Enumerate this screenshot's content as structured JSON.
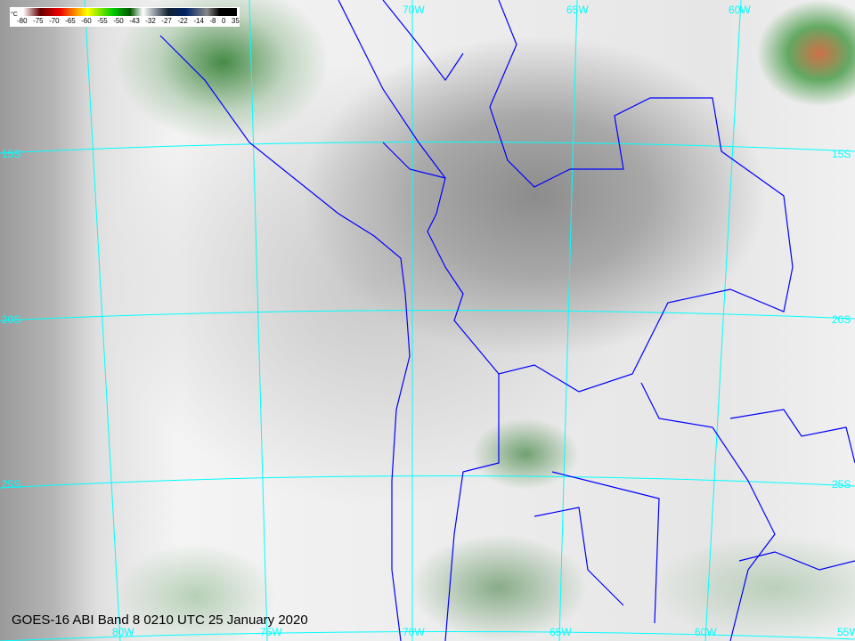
{
  "caption": "GOES-16 ABI Band 8 0210 UTC 25 January 2020",
  "colorbar": {
    "unit": "°C",
    "ticks": [
      "-80",
      "-75",
      "-70",
      "-65",
      "-60",
      "-55",
      "-50",
      "-43",
      "-32",
      "-27",
      "-22",
      "-14",
      "-8",
      "0",
      "35"
    ]
  },
  "grid_labels": {
    "top": [
      "70W",
      "65W",
      "60W"
    ],
    "left": [
      "15S",
      "20S",
      "25S"
    ],
    "right": [
      "15S",
      "20S",
      "25S"
    ],
    "bottom": [
      "80W",
      "75W",
      "70W",
      "65W",
      "60W",
      "55W"
    ]
  },
  "colors": {
    "grid": "#00ffff",
    "borders": "#0000ff"
  }
}
